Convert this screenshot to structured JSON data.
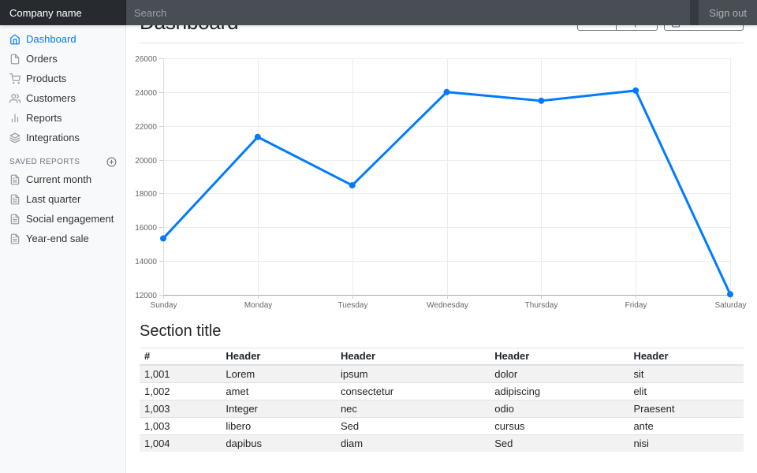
{
  "navbar": {
    "brand": "Company name",
    "search_placeholder": "Search",
    "sign_out": "Sign out"
  },
  "sidebar": {
    "items": [
      {
        "label": "Dashboard",
        "icon": "home-icon",
        "active": true
      },
      {
        "label": "Orders",
        "icon": "file-icon",
        "active": false
      },
      {
        "label": "Products",
        "icon": "shopping-cart-icon",
        "active": false
      },
      {
        "label": "Customers",
        "icon": "users-icon",
        "active": false
      },
      {
        "label": "Reports",
        "icon": "bar-chart-icon",
        "active": false
      },
      {
        "label": "Integrations",
        "icon": "layers-icon",
        "active": false
      }
    ],
    "saved_reports": {
      "title": "SAVED REPORTS",
      "add_icon": "plus-circle-icon",
      "items": [
        {
          "label": "Current month",
          "icon": "file-text-icon"
        },
        {
          "label": "Last quarter",
          "icon": "file-text-icon"
        },
        {
          "label": "Social engagement",
          "icon": "file-text-icon"
        },
        {
          "label": "Year-end sale",
          "icon": "file-text-icon"
        }
      ]
    }
  },
  "main": {
    "title": "Dashboard",
    "toolbar": {
      "share": "Share",
      "export": "Export",
      "period": "This week",
      "period_icon": "calendar-icon"
    },
    "section": {
      "title": "Section title"
    }
  },
  "chart_data": {
    "type": "line",
    "title": "",
    "x": [
      "Sunday",
      "Monday",
      "Tuesday",
      "Wednesday",
      "Thursday",
      "Friday",
      "Saturday"
    ],
    "series": [
      {
        "name": "",
        "values": [
          15339,
          21345,
          18483,
          24003,
          23489,
          24092,
          12034
        ],
        "color": "#007bff"
      }
    ],
    "ylim": [
      12000,
      26000
    ],
    "ytick_step": 2000,
    "xlabel": "",
    "ylabel": "",
    "grid": true,
    "legend": "none"
  },
  "table": {
    "columns": [
      "#",
      "Header",
      "Header",
      "Header",
      "Header"
    ],
    "rows": [
      [
        "1,001",
        "Lorem",
        "ipsum",
        "dolor",
        "sit"
      ],
      [
        "1,002",
        "amet",
        "consectetur",
        "adipiscing",
        "elit"
      ],
      [
        "1,003",
        "Integer",
        "nec",
        "odio",
        "Praesent"
      ],
      [
        "1,003",
        "libero",
        "Sed",
        "cursus",
        "ante"
      ],
      [
        "1,004",
        "dapibus",
        "diam",
        "Sed",
        "nisi"
      ]
    ]
  },
  "colors": {
    "accent": "#007bff",
    "navbar_bg": "#343a40",
    "sidebar_bg": "#f8f9fa",
    "border": "#dee2e6",
    "muted_text": "#6c757d",
    "table_stripe": "rgba(0,0,0,0.05)",
    "chart_line": "#007bff",
    "chart_grid": "#ececec",
    "chart_axis": "#a8a8a8",
    "axis_text": "#666666"
  }
}
